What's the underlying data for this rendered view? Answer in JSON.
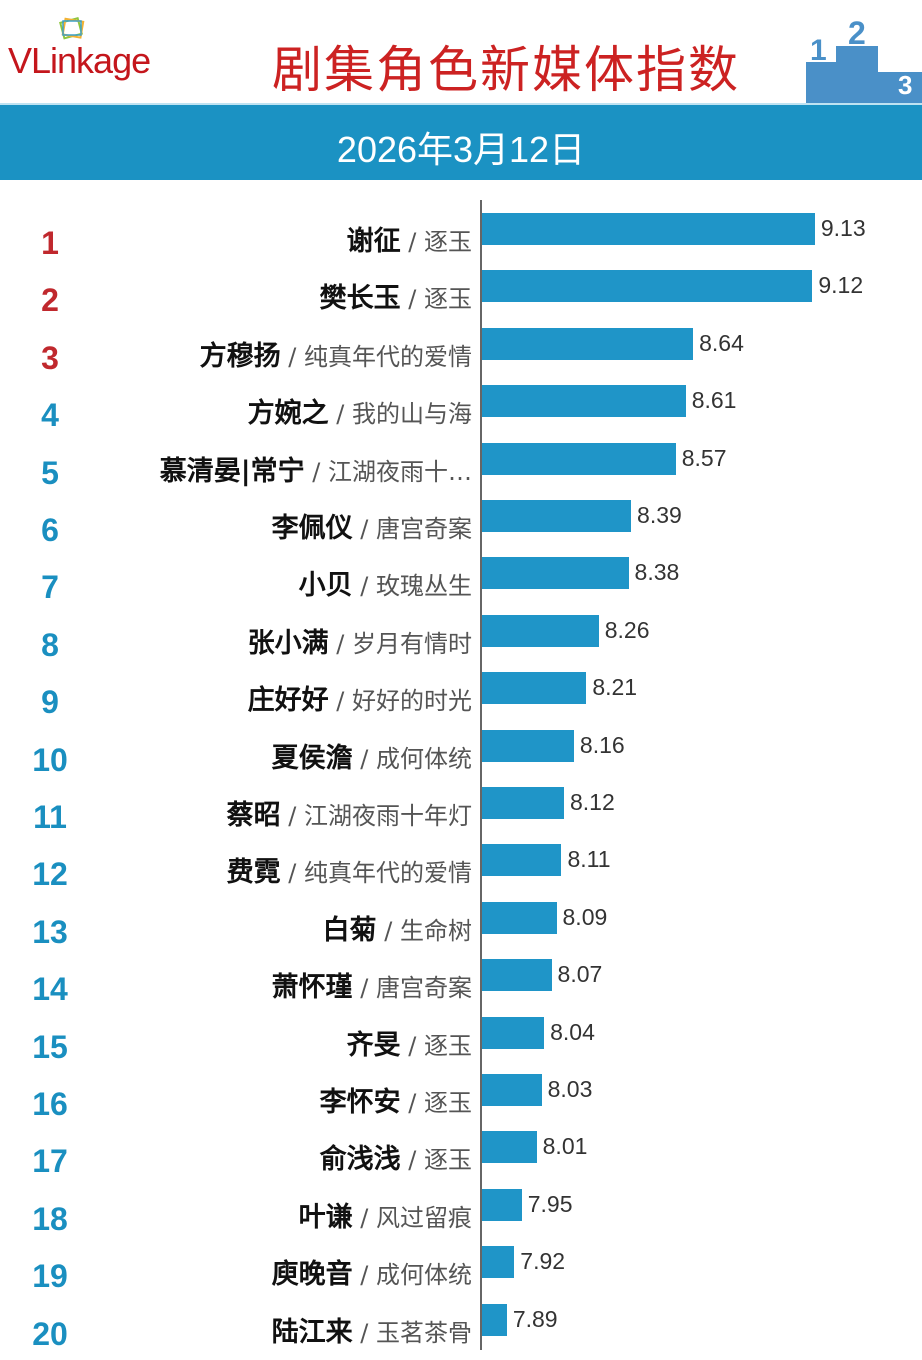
{
  "header": {
    "logo": "VLinkage",
    "title": "剧集角色新媒体指数",
    "date": "2026年3月12日",
    "podium_numbers": [
      "2",
      "1",
      "3"
    ]
  },
  "colors": {
    "bar": "#1f95c8",
    "banner": "#1b92c3",
    "title": "#cc2222",
    "rank_top3": "#c0282d",
    "rank_other": "#1a8fc0"
  },
  "chart_data": {
    "type": "bar",
    "orientation": "horizontal",
    "title": "剧集角色新媒体指数",
    "subtitle": "2026年3月12日",
    "items": [
      {
        "rank": "1",
        "name": "谢征",
        "show": "逐玉",
        "value": 9.13
      },
      {
        "rank": "2",
        "name": "樊长玉",
        "show": "逐玉",
        "value": 9.12
      },
      {
        "rank": "3",
        "name": "方穆扬",
        "show": "纯真年代的爱情",
        "value": 8.64
      },
      {
        "rank": "4",
        "name": "方婉之",
        "show": "我的山与海",
        "value": 8.61
      },
      {
        "rank": "5",
        "name": "慕清晏|常宁",
        "show": "江湖夜雨十…",
        "value": 8.57
      },
      {
        "rank": "6",
        "name": "李佩仪",
        "show": "唐宫奇案",
        "value": 8.39
      },
      {
        "rank": "7",
        "name": "小贝",
        "show": "玫瑰丛生",
        "value": 8.38
      },
      {
        "rank": "8",
        "name": "张小满",
        "show": "岁月有情时",
        "value": 8.26
      },
      {
        "rank": "9",
        "name": "庄好好",
        "show": "好好的时光",
        "value": 8.21
      },
      {
        "rank": "10",
        "name": "夏侯澹",
        "show": "成何体统",
        "value": 8.16
      },
      {
        "rank": "11",
        "name": "蔡昭",
        "show": "江湖夜雨十年灯",
        "value": 8.12
      },
      {
        "rank": "12",
        "name": "费霓",
        "show": "纯真年代的爱情",
        "value": 8.11
      },
      {
        "rank": "13",
        "name": "白菊",
        "show": "生命树",
        "value": 8.09
      },
      {
        "rank": "14",
        "name": "萧怀瑾",
        "show": "唐宫奇案",
        "value": 8.07
      },
      {
        "rank": "15",
        "name": "齐旻",
        "show": "逐玉",
        "value": 8.04
      },
      {
        "rank": "16",
        "name": "李怀安",
        "show": "逐玉",
        "value": 8.03
      },
      {
        "rank": "17",
        "name": "俞浅浅",
        "show": "逐玉",
        "value": 8.01
      },
      {
        "rank": "18",
        "name": "叶谦",
        "show": "风过留痕",
        "value": 7.95
      },
      {
        "rank": "19",
        "name": "庾晚音",
        "show": "成何体统",
        "value": 7.92
      },
      {
        "rank": "20",
        "name": "陆江来",
        "show": "玉茗茶骨",
        "value": 7.89
      }
    ],
    "grid": false,
    "legend": "none"
  }
}
